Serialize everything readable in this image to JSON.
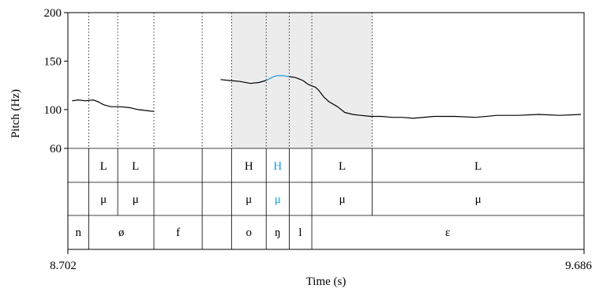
{
  "chart_data": {
    "type": "line",
    "ylabel": "Pitch (Hz)",
    "xlabel": "Time (s)",
    "xlim": [
      8.702,
      9.686
    ],
    "x_tick_labels": [
      "8.702",
      "9.686"
    ],
    "ylim": [
      60,
      200
    ],
    "y_ticks": [
      60,
      100,
      150,
      200
    ],
    "highlight_region": [
      9.014,
      9.282
    ],
    "series": [
      {
        "color": "#000000",
        "x": [
          8.71,
          8.722,
          8.736,
          8.75,
          8.76,
          8.77,
          8.784,
          8.8,
          8.82,
          8.836,
          8.852,
          8.866
        ],
        "values": [
          109,
          110,
          109,
          110,
          108,
          105,
          103,
          103,
          102,
          100,
          99,
          98
        ]
      },
      {
        "color": "#000000",
        "x": [
          8.993,
          9.01,
          9.03,
          9.05,
          9.066,
          9.08
        ],
        "values": [
          131,
          130,
          129,
          127,
          128,
          130
        ]
      },
      {
        "color": "#1a9de0",
        "x": [
          9.08,
          9.09,
          9.1,
          9.112,
          9.124
        ],
        "values": [
          130,
          133,
          135,
          135,
          134
        ]
      },
      {
        "color": "#000000",
        "x": [
          9.124,
          9.136,
          9.15,
          9.16,
          9.174,
          9.18,
          9.19,
          9.2,
          9.216,
          9.23,
          9.245,
          9.26,
          9.28,
          9.3,
          9.32,
          9.34,
          9.36,
          9.4,
          9.44,
          9.48,
          9.52,
          9.56,
          9.6,
          9.64,
          9.68
        ],
        "values": [
          134,
          133,
          130,
          126,
          123,
          120,
          113,
          108,
          103,
          97,
          95,
          94,
          93,
          93,
          92,
          92,
          91,
          93,
          93,
          92,
          94,
          94,
          95,
          94,
          95
        ]
      }
    ],
    "tiers": [
      {
        "boundaries": [
          8.742,
          8.797,
          8.866,
          8.958,
          9.014,
          9.08,
          9.124,
          9.167,
          9.282
        ],
        "labels": [
          {
            "x": 8.77,
            "text": "L",
            "color": "#000000"
          },
          {
            "x": 8.831,
            "text": "L",
            "color": "#000000"
          },
          {
            "x": 9.047,
            "text": "H",
            "color": "#000000"
          },
          {
            "x": 9.102,
            "text": "H",
            "color": "#1a9de0"
          },
          {
            "x": 9.225,
            "text": "L",
            "color": "#000000"
          },
          {
            "x": 9.484,
            "text": "L",
            "color": "#000000"
          }
        ]
      },
      {
        "boundaries": [
          8.742,
          8.797,
          8.866,
          8.958,
          9.014,
          9.08,
          9.124,
          9.167,
          9.282
        ],
        "labels": [
          {
            "x": 8.77,
            "text": "μ",
            "color": "#000000"
          },
          {
            "x": 8.831,
            "text": "μ",
            "color": "#000000"
          },
          {
            "x": 9.047,
            "text": "μ",
            "color": "#000000"
          },
          {
            "x": 9.102,
            "text": "μ",
            "color": "#1a9de0"
          },
          {
            "x": 9.225,
            "text": "μ",
            "color": "#000000"
          },
          {
            "x": 9.484,
            "text": "μ",
            "color": "#000000"
          }
        ]
      },
      {
        "boundaries": [
          8.742,
          8.866,
          8.958,
          9.014,
          9.08,
          9.124,
          9.167
        ],
        "labels": [
          {
            "x": 8.722,
            "text": "n",
            "color": "#000000"
          },
          {
            "x": 8.804,
            "text": "ø",
            "color": "#000000"
          },
          {
            "x": 8.912,
            "text": "f",
            "color": "#000000"
          },
          {
            "x": 9.047,
            "text": "o",
            "color": "#000000"
          },
          {
            "x": 9.102,
            "text": "ŋ",
            "color": "#000000"
          },
          {
            "x": 9.145,
            "text": "l",
            "color": "#000000"
          },
          {
            "x": 9.426,
            "text": "ɛ",
            "color": "#000000"
          }
        ]
      }
    ]
  }
}
